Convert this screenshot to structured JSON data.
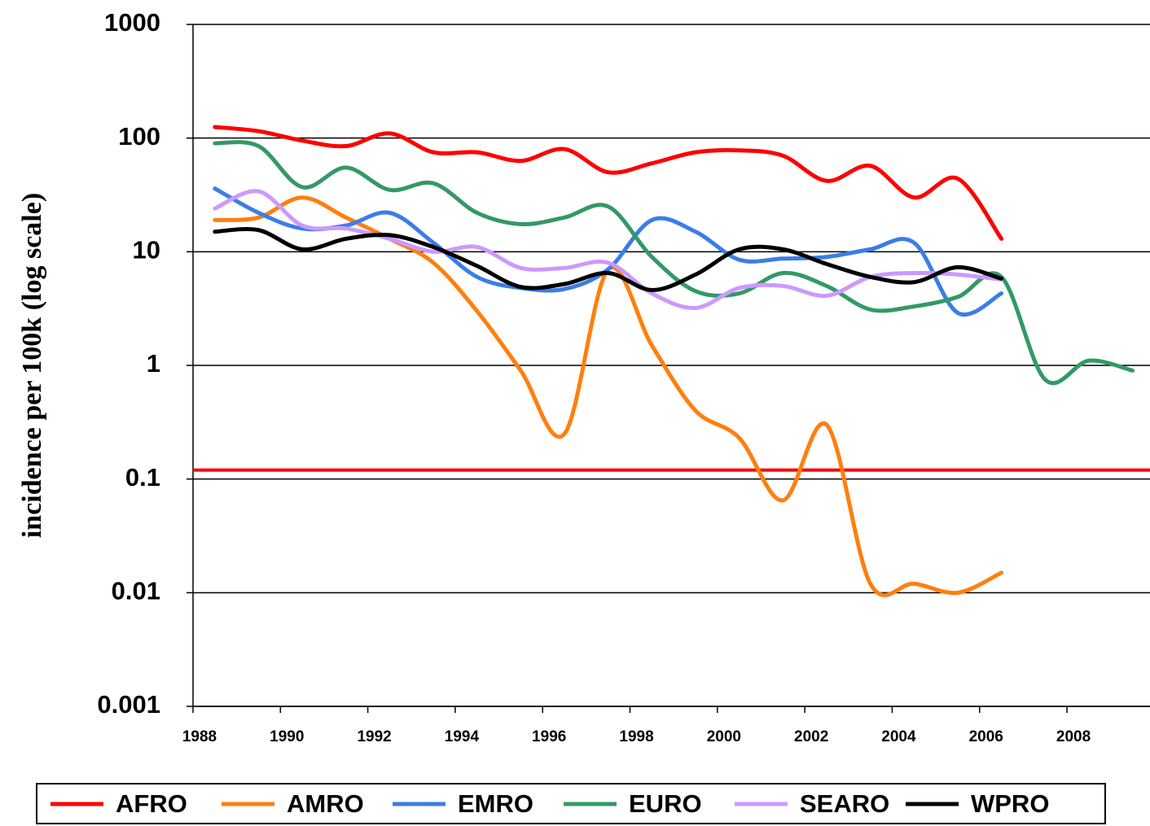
{
  "chart_data": {
    "type": "line",
    "y_axis_label": "incidence per 100k  (log scale)",
    "log_scale_y": true,
    "grid": true,
    "legend_position": "bottom",
    "x": [
      1988.5,
      1989.5,
      1990.5,
      1991.5,
      1992.5,
      1993.5,
      1994.5,
      1995.5,
      1996.5,
      1997.5,
      1998.5,
      1999.5,
      2000.5,
      2001.5,
      2002.5,
      2003.5,
      2004.5,
      2005.5,
      2006.5,
      2007.5,
      2008.5,
      2009.5
    ],
    "xlim": [
      1988,
      2009.9
    ],
    "xticks": [
      1988,
      1990,
      1992,
      1994,
      1996,
      1998,
      2000,
      2002,
      2004,
      2006,
      2008
    ],
    "ylim": [
      0.001,
      1000
    ],
    "yticks": [
      0.001,
      0.01,
      0.1,
      1,
      10,
      100,
      1000
    ],
    "reference_line": {
      "value": 0.12,
      "color": "#ff0000"
    },
    "series": [
      {
        "name": "AFRO",
        "color": "#ff0000",
        "values": [
          125,
          115,
          95,
          85,
          110,
          75,
          75,
          63,
          80,
          50,
          60,
          75,
          78,
          70,
          42,
          57,
          30,
          44,
          13,
          null,
          null,
          null
        ]
      },
      {
        "name": "AMRO",
        "color": "#ff7f0e",
        "values": [
          19,
          20,
          30,
          20,
          13,
          8,
          3,
          0.9,
          0.25,
          7,
          1.5,
          0.4,
          0.23,
          0.065,
          0.3,
          0.012,
          0.012,
          0.01,
          0.015,
          null,
          null,
          null
        ]
      },
      {
        "name": "EMRO",
        "color": "#3b7de8",
        "values": [
          36,
          22,
          16,
          17,
          22,
          12,
          6,
          4.8,
          4.7,
          7,
          19,
          15,
          8.5,
          8.7,
          9,
          10.5,
          12,
          2.9,
          4.3,
          null,
          null,
          null
        ]
      },
      {
        "name": "EURO",
        "color": "#339966",
        "values": [
          90,
          85,
          37,
          55,
          35,
          40,
          22,
          17.5,
          20,
          25,
          9,
          4.5,
          4.3,
          6.5,
          5,
          3.1,
          3.3,
          4,
          6,
          0.75,
          1.1,
          0.9
        ]
      },
      {
        "name": "SEARO",
        "color": "#cc99ff",
        "values": [
          24,
          34,
          17,
          16,
          13,
          10,
          11,
          7.2,
          7.2,
          8,
          4.3,
          3.2,
          4.8,
          5,
          4.1,
          6,
          6.5,
          6.3,
          5.7,
          null,
          null,
          null
        ]
      },
      {
        "name": "WPRO",
        "color": "#000000",
        "values": [
          15,
          15.5,
          10.5,
          13,
          14,
          11,
          7.5,
          4.9,
          5.2,
          6.5,
          4.6,
          6.3,
          10.5,
          10.5,
          7.8,
          6,
          5.4,
          7.3,
          5.8,
          null,
          null,
          null
        ]
      }
    ]
  }
}
